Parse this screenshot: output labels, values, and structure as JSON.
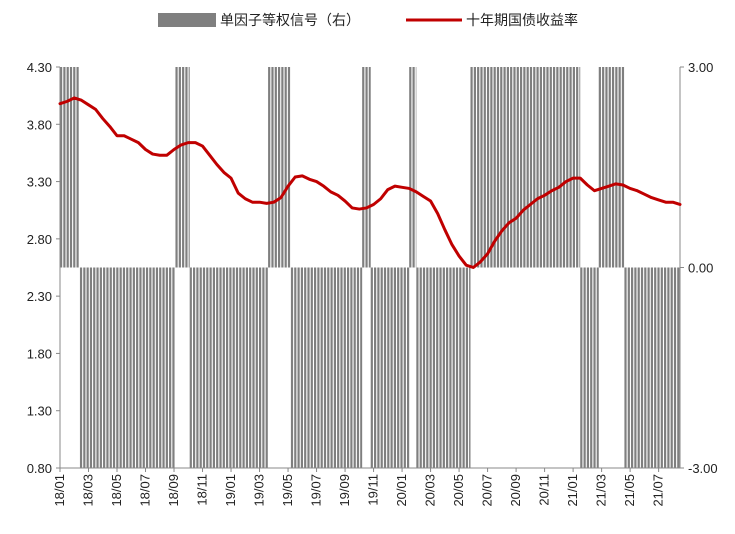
{
  "chart_data": {
    "type": "bar+line",
    "legend": [
      {
        "label": "单因子等权信号（右）",
        "color": "#7f7f7f",
        "kind": "bar"
      },
      {
        "label": "十年期国债收益率",
        "color": "#c00000",
        "kind": "line"
      }
    ],
    "x_tick_labels": [
      "18/01",
      "18/03",
      "18/05",
      "18/07",
      "18/09",
      "18/11",
      "19/01",
      "19/03",
      "19/05",
      "19/07",
      "19/09",
      "19/11",
      "20/01",
      "20/03",
      "20/05",
      "20/07",
      "20/09",
      "20/11",
      "21/01",
      "21/03",
      "21/05",
      "21/07"
    ],
    "y_left": {
      "ylim": [
        0.8,
        4.3
      ],
      "ticks": [
        "4.30",
        "3.80",
        "3.30",
        "2.80",
        "2.30",
        "1.80",
        "1.30",
        "0.80"
      ]
    },
    "y_right": {
      "ylim": [
        -3.0,
        3.0
      ],
      "ticks": [
        "3.00",
        "0.00",
        "-3.00"
      ]
    },
    "x_range_months": [
      0,
      43.5
    ],
    "signal_periods": [
      {
        "start": 0.0,
        "end": 1.4,
        "value": 3
      },
      {
        "start": 1.4,
        "end": 8.1,
        "value": -3
      },
      {
        "start": 8.1,
        "end": 9.1,
        "value": 3
      },
      {
        "start": 9.1,
        "end": 14.6,
        "value": -3
      },
      {
        "start": 14.6,
        "end": 16.2,
        "value": 3
      },
      {
        "start": 16.2,
        "end": 21.2,
        "value": -3
      },
      {
        "start": 21.2,
        "end": 21.8,
        "value": 3
      },
      {
        "start": 21.8,
        "end": 24.5,
        "value": -3
      },
      {
        "start": 24.5,
        "end": 25.0,
        "value": 3
      },
      {
        "start": 25.0,
        "end": 28.8,
        "value": -3
      },
      {
        "start": 28.8,
        "end": 36.5,
        "value": 3
      },
      {
        "start": 36.5,
        "end": 37.8,
        "value": -3
      },
      {
        "start": 37.8,
        "end": 39.6,
        "value": 3
      },
      {
        "start": 39.6,
        "end": 43.5,
        "value": -3
      }
    ],
    "yield_series": {
      "name": "十年期国债收益率",
      "points": [
        [
          0.0,
          3.98
        ],
        [
          0.5,
          4.0
        ],
        [
          1.0,
          4.03
        ],
        [
          1.5,
          4.01
        ],
        [
          2.0,
          3.97
        ],
        [
          2.5,
          3.93
        ],
        [
          3.0,
          3.85
        ],
        [
          3.5,
          3.78
        ],
        [
          4.0,
          3.7
        ],
        [
          4.5,
          3.7
        ],
        [
          5.0,
          3.67
        ],
        [
          5.5,
          3.64
        ],
        [
          6.0,
          3.58
        ],
        [
          6.5,
          3.54
        ],
        [
          7.0,
          3.53
        ],
        [
          7.5,
          3.53
        ],
        [
          8.0,
          3.58
        ],
        [
          8.5,
          3.62
        ],
        [
          9.0,
          3.64
        ],
        [
          9.5,
          3.64
        ],
        [
          10.0,
          3.61
        ],
        [
          10.5,
          3.53
        ],
        [
          11.0,
          3.45
        ],
        [
          11.5,
          3.38
        ],
        [
          12.0,
          3.33
        ],
        [
          12.5,
          3.2
        ],
        [
          13.0,
          3.15
        ],
        [
          13.5,
          3.12
        ],
        [
          14.0,
          3.12
        ],
        [
          14.5,
          3.11
        ],
        [
          15.0,
          3.12
        ],
        [
          15.5,
          3.16
        ],
        [
          16.0,
          3.26
        ],
        [
          16.5,
          3.34
        ],
        [
          17.0,
          3.35
        ],
        [
          17.5,
          3.32
        ],
        [
          18.0,
          3.3
        ],
        [
          18.5,
          3.26
        ],
        [
          19.0,
          3.21
        ],
        [
          19.5,
          3.18
        ],
        [
          20.0,
          3.13
        ],
        [
          20.5,
          3.07
        ],
        [
          21.0,
          3.06
        ],
        [
          21.5,
          3.07
        ],
        [
          22.0,
          3.1
        ],
        [
          22.5,
          3.15
        ],
        [
          23.0,
          3.23
        ],
        [
          23.5,
          3.26
        ],
        [
          24.0,
          3.25
        ],
        [
          24.5,
          3.24
        ],
        [
          25.0,
          3.21
        ],
        [
          25.5,
          3.17
        ],
        [
          26.0,
          3.13
        ],
        [
          26.5,
          3.02
        ],
        [
          27.0,
          2.88
        ],
        [
          27.5,
          2.75
        ],
        [
          28.0,
          2.65
        ],
        [
          28.5,
          2.57
        ],
        [
          29.0,
          2.55
        ],
        [
          29.5,
          2.6
        ],
        [
          30.0,
          2.67
        ],
        [
          30.5,
          2.78
        ],
        [
          31.0,
          2.87
        ],
        [
          31.5,
          2.94
        ],
        [
          32.0,
          2.98
        ],
        [
          32.5,
          3.05
        ],
        [
          33.0,
          3.1
        ],
        [
          33.5,
          3.15
        ],
        [
          34.0,
          3.18
        ],
        [
          34.5,
          3.22
        ],
        [
          35.0,
          3.25
        ],
        [
          35.5,
          3.3
        ],
        [
          36.0,
          3.33
        ],
        [
          36.5,
          3.33
        ],
        [
          37.0,
          3.27
        ],
        [
          37.5,
          3.22
        ],
        [
          38.0,
          3.24
        ],
        [
          38.5,
          3.26
        ],
        [
          39.0,
          3.28
        ],
        [
          39.5,
          3.27
        ],
        [
          40.0,
          3.24
        ],
        [
          40.5,
          3.22
        ],
        [
          41.0,
          3.19
        ],
        [
          41.5,
          3.16
        ],
        [
          42.0,
          3.14
        ],
        [
          42.5,
          3.12
        ],
        [
          43.0,
          3.12
        ],
        [
          43.5,
          3.1
        ]
      ]
    }
  }
}
